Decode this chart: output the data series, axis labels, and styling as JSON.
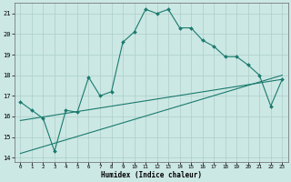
{
  "xlabel": "Humidex (Indice chaleur)",
  "xlim": [
    -0.5,
    23.5
  ],
  "ylim": [
    13.8,
    21.5
  ],
  "xticks": [
    0,
    1,
    2,
    3,
    4,
    5,
    6,
    7,
    8,
    9,
    10,
    11,
    12,
    13,
    14,
    15,
    16,
    17,
    18,
    19,
    20,
    21,
    22,
    23
  ],
  "yticks": [
    14,
    15,
    16,
    17,
    18,
    19,
    20,
    21
  ],
  "bg_color": "#cce8e4",
  "line_color": "#1a7a6e",
  "grid_color": "#aaceca",
  "line1_x": [
    0,
    1,
    2,
    3,
    4,
    5,
    6,
    7,
    8,
    9,
    10,
    11,
    12,
    13,
    14,
    15,
    16,
    17,
    18,
    19,
    20,
    21,
    22,
    23
  ],
  "line1_y": [
    16.7,
    16.3,
    15.9,
    14.3,
    16.3,
    16.2,
    17.9,
    17.0,
    17.2,
    19.6,
    20.1,
    21.2,
    21.0,
    21.2,
    20.3,
    20.3,
    19.7,
    19.4,
    18.9,
    18.9,
    18.5,
    18.0,
    16.5,
    17.8
  ],
  "line2_x": [
    0,
    23
  ],
  "line2_y": [
    14.2,
    18.0
  ],
  "line3_x": [
    0,
    23
  ],
  "line3_y": [
    15.8,
    17.8
  ],
  "figwidth": 3.2,
  "figheight": 2.0,
  "dpi": 100
}
